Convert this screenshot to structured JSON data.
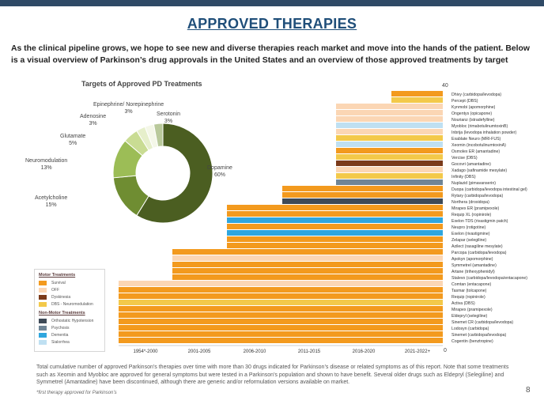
{
  "page": {
    "title": "APPROVED THERAPIES",
    "intro": "As the clinical pipeline grows, we hope to see new and diverse therapies reach market and move into the hands of the patient. Below is a visual overview of Parkinson’s drug approvals in the United States and an overview of those approved treatments by target",
    "caption": "Total cumulative number of approved Parkinson’s therapies over time with more than 30 drugs indicated for Parkinson’s disease or related symptoms as of this report. Note that some treatments such as Xeomin and Myobloc are approved for general symptoms but were tested in a Parkinson’s population and shown to have benefit. Several older drugs such as Eldepryl (Selegiline) and Symmetrel (Amantadine) have been discontinued, although there are generic and/or reformulation versions available on market.",
    "footnote": "*first therapy approved for Parkinson’s",
    "page_number": "8"
  },
  "legend": {
    "motor_heading": "Motor Treatments",
    "nonmotor_heading": "Non-Motor Treatments",
    "motor_items": [
      {
        "label": "Survival",
        "color": "#f39a1e"
      },
      {
        "label": "OFF",
        "color": "#fbd6b4"
      },
      {
        "label": "Dyskinesia",
        "color": "#7b3a1a"
      },
      {
        "label": "DBS - Neuromodulation",
        "color": "#f3c94a"
      }
    ],
    "nonmotor_items": [
      {
        "label": "Orthostatic Hypotension",
        "color": "#3e4a57"
      },
      {
        "label": "Psychosis",
        "color": "#6f8596"
      },
      {
        "label": "Dementia",
        "color": "#2fa6de"
      },
      {
        "label": "Sialorrhea",
        "color": "#bfe0f2"
      }
    ]
  },
  "chart_data": [
    {
      "type": "pie",
      "title": "Targets of Approved PD Treatments",
      "slices": [
        {
          "label": "Dopamine",
          "value": 60,
          "display": "60%",
          "color": "#4b5e21"
        },
        {
          "label": "Acetylcholine",
          "value": 15,
          "display": "15%",
          "color": "#6f8d32"
        },
        {
          "label": "Neuromodulation",
          "value": 13,
          "display": "13%",
          "color": "#9cbd56"
        },
        {
          "label": "Glutamate",
          "value": 5,
          "display": "5%",
          "color": "#c9dc93"
        },
        {
          "label": "Adenosine",
          "value": 3,
          "display": "3%",
          "color": "#e6efcb"
        },
        {
          "label": "Epinephrine/ Norepinephrine",
          "value": 3,
          "display": "3%",
          "color": "#f4f7e8"
        },
        {
          "label": "Serotonin",
          "value": 3,
          "display": "3%",
          "color": "#b9c99b"
        }
      ]
    },
    {
      "type": "bar",
      "subtype": "cumulative-staircase",
      "x_categories": [
        "1954*-2000",
        "2001-2005",
        "2006-2010",
        "2011-2015",
        "2016-2020",
        "2021-2022+"
      ],
      "y_range": [
        0,
        40
      ],
      "y_labels": {
        "top": "40",
        "bottom": "0"
      },
      "colors": {
        "Survival": "#f39a1e",
        "OFF": "#fbd6b4",
        "Dyskinesia": "#7b3a1a",
        "DBS": "#f3c94a",
        "Orthostatic Hypotension": "#3e4a57",
        "Psychosis": "#6f8596",
        "Dementia": "#2fa6de",
        "Sialorrhea": "#bfe0f2"
      },
      "drugs": [
        {
          "label": "Dhivy (carbidopa/levodopa)",
          "period": 5,
          "cat": "Survival"
        },
        {
          "label": "Percept (DBS)",
          "period": 5,
          "cat": "DBS"
        },
        {
          "label": "Kynmobi (apomorphine)",
          "period": 4,
          "cat": "OFF"
        },
        {
          "label": "Ongentys (opicapone)",
          "period": 4,
          "cat": "OFF"
        },
        {
          "label": "Nourianz (istradefylline)",
          "period": 4,
          "cat": "OFF"
        },
        {
          "label": "Myobloc (rimabotulinumtoxinB)",
          "period": 4,
          "cat": "Sialorrhea"
        },
        {
          "label": "Inbrija (levodopa inhalation powder)",
          "period": 4,
          "cat": "OFF"
        },
        {
          "label": "Exablate Neuro (MRI-FUS)",
          "period": 4,
          "cat": "DBS"
        },
        {
          "label": "Xeomin (incobotulinumtoxinA)",
          "period": 4,
          "cat": "Sialorrhea"
        },
        {
          "label": "Osmolex ER (amantadine)",
          "period": 4,
          "cat": "Survival"
        },
        {
          "label": "Vercise (DBS)",
          "period": 4,
          "cat": "DBS"
        },
        {
          "label": "Gocovri (amantadine)",
          "period": 4,
          "cat": "Dyskinesia"
        },
        {
          "label": "Xadago (safinamide mesylate)",
          "period": 4,
          "cat": "OFF"
        },
        {
          "label": "Infinity (DBS)",
          "period": 4,
          "cat": "DBS"
        },
        {
          "label": "Nuplazid (pimavanserin)",
          "period": 4,
          "cat": "Psychosis"
        },
        {
          "label": "Duopa (carbidopa/levodopa intestinal gel)",
          "period": 3,
          "cat": "Survival"
        },
        {
          "label": "Rytary (carbidopa/levodopa)",
          "period": 3,
          "cat": "Survival"
        },
        {
          "label": "Northera (droxidopa)",
          "period": 3,
          "cat": "Orthostatic Hypotension"
        },
        {
          "label": "Mirapex ER (pramipexole)",
          "period": 2,
          "cat": "Survival"
        },
        {
          "label": "Requip XL (ropinirole)",
          "period": 2,
          "cat": "Survival"
        },
        {
          "label": "Exelon TDS (rivastigmin patch)",
          "period": 2,
          "cat": "Dementia"
        },
        {
          "label": "Neupro (rotigotine)",
          "period": 2,
          "cat": "Survival"
        },
        {
          "label": "Exelon (rivastigmine)",
          "period": 2,
          "cat": "Dementia"
        },
        {
          "label": "Zelapar (selegiline)",
          "period": 2,
          "cat": "Survival"
        },
        {
          "label": "Azilect (rasagiline mesylate)",
          "period": 2,
          "cat": "Survival"
        },
        {
          "label": "Parcopa (carbidopa/levodopa)",
          "period": 1,
          "cat": "Survival"
        },
        {
          "label": "Apokyn (apomorphine)",
          "period": 1,
          "cat": "OFF"
        },
        {
          "label": "Symmetrel (amantadine)",
          "period": 1,
          "cat": "Survival"
        },
        {
          "label": "Artane (trihexyphenidyl)",
          "period": 1,
          "cat": "Survival"
        },
        {
          "label": "Stalevo (carbidopa/levodopa/entacapone)",
          "period": 1,
          "cat": "Survival"
        },
        {
          "label": "Comtan (entacapone)",
          "period": 0,
          "cat": "OFF"
        },
        {
          "label": "Tasmar (tolcapone)",
          "period": 0,
          "cat": "Survival"
        },
        {
          "label": "Requip (ropinirole)",
          "period": 0,
          "cat": "Survival"
        },
        {
          "label": "Activa (DBS)",
          "period": 0,
          "cat": "DBS"
        },
        {
          "label": "Mirapex (pramipexole)",
          "period": 0,
          "cat": "Survival"
        },
        {
          "label": "Eldepryl (selegiline)",
          "period": 0,
          "cat": "Survival"
        },
        {
          "label": "Sinemet CR (carbidopa/levodopa)",
          "period": 0,
          "cat": "Survival"
        },
        {
          "label": "Lodosyn (carbidopa)",
          "period": 0,
          "cat": "Survival"
        },
        {
          "label": "Sinemet (carbidopa/levodopa)",
          "period": 0,
          "cat": "Survival"
        },
        {
          "label": "Cogentin (benztropine)",
          "period": 0,
          "cat": "Survival"
        }
      ]
    }
  ]
}
